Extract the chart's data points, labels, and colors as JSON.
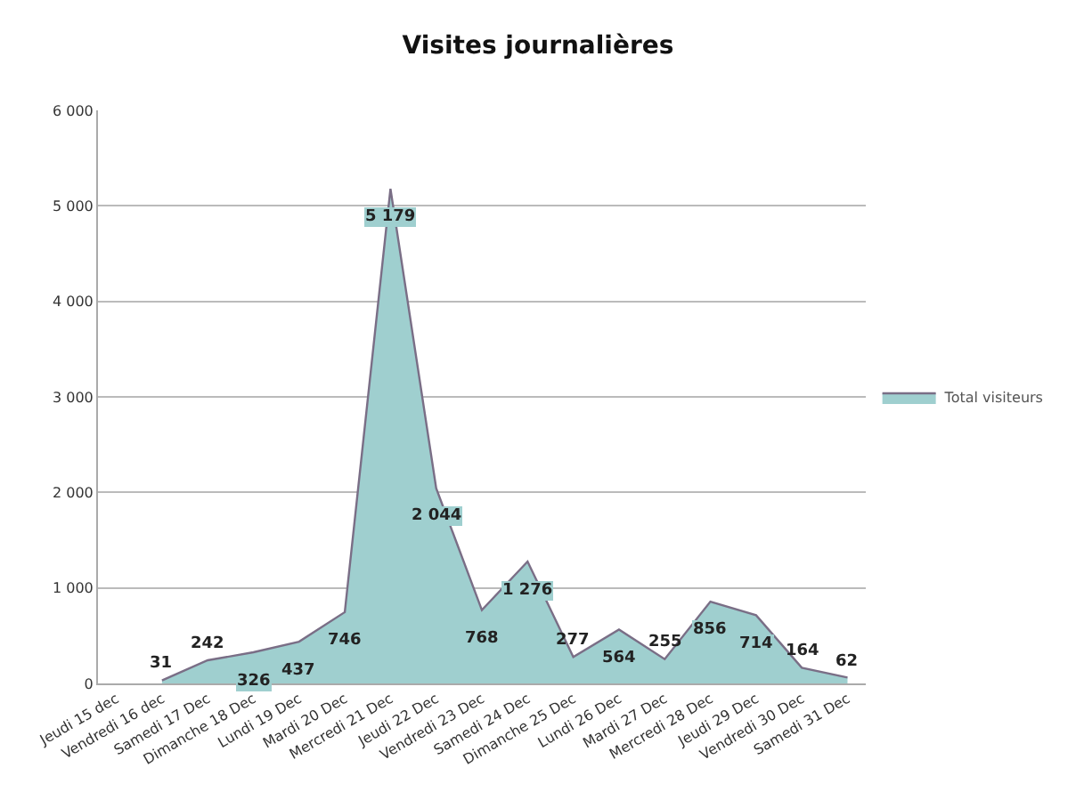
{
  "chart_data": {
    "type": "area",
    "title": "Visites journalières",
    "categories": [
      "Jeudi 15 dec",
      "Vendredi 16 dec",
      "Samedi 17 Dec",
      "Dimanche 18 Dec",
      "Lundi 19 Dec",
      "Mardi 20 Dec",
      "Mercredi 21 Dec",
      "Jeudi 22 Dec",
      "Vendredi 23 Dec",
      "Samedi 24 Dec",
      "Dimanche 25 Dec",
      "Lundi 26 Dec",
      "Mardi 27 Dec",
      "Mercredi 28 Dec",
      "Jeudi 29 Dec",
      "Vendredi 30 Dec",
      "Samedi 31 Dec"
    ],
    "series": [
      {
        "name": "Total visiteurs",
        "color": "#9fcfcf",
        "values": [
          null,
          31,
          242,
          326,
          437,
          746,
          5179,
          2044,
          768,
          1276,
          277,
          564,
          255,
          856,
          714,
          164,
          62
        ],
        "value_labels": [
          null,
          "31",
          "242",
          "326",
          "437",
          "746",
          "5 179",
          "2 044",
          "768",
          "1 276",
          "277",
          "564",
          "255",
          "856",
          "714",
          "164",
          "62"
        ]
      }
    ],
    "ylim": [
      0,
      6000
    ],
    "yticks": [
      0,
      {
        "value": 1000,
        "label": "1 000"
      },
      {
        "value": 2000,
        "label": "2 000"
      },
      {
        "value": 3000,
        "label": "3 000"
      },
      {
        "value": 4000,
        "label": "4 000"
      },
      {
        "value": 5000,
        "label": "5 000"
      },
      {
        "value": 6000,
        "label": "6 000"
      }
    ],
    "grid": "y",
    "legend": "right"
  }
}
